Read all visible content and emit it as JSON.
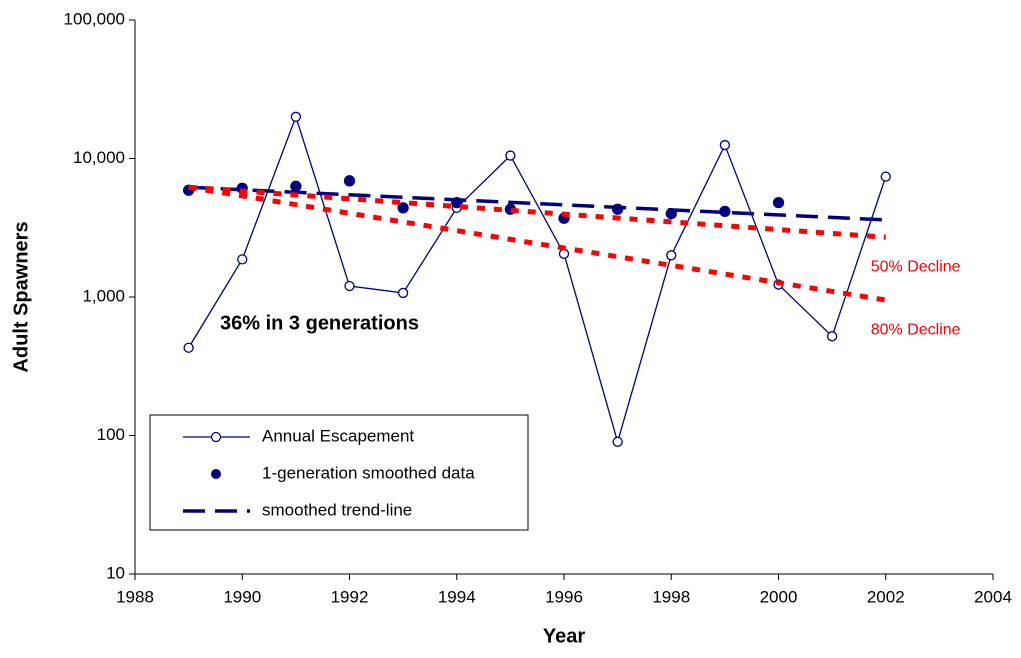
{
  "chart_data": {
    "type": "line",
    "x_label": "Year",
    "y_label": "Adult Spawners",
    "xlim": [
      1988,
      2004
    ],
    "xticks": [
      1988,
      1990,
      1992,
      1994,
      1996,
      1998,
      2000,
      2002,
      2004
    ],
    "ylim": [
      10,
      100000
    ],
    "yticks": [
      10,
      100,
      {
        "value": 1000,
        "label": "1,000"
      },
      {
        "value": 10000,
        "label": "10,000"
      },
      {
        "value": 100000,
        "label": "100,000"
      }
    ],
    "log_scale_y": true,
    "grid": false,
    "annotations": [
      "36% in 3 generations"
    ],
    "series": [
      {
        "name": "Annual Escapement",
        "color": "#000080",
        "style": "line-open-marker",
        "x": [
          1989,
          1990,
          1991,
          1992,
          1993,
          1994,
          1995,
          1996,
          1997,
          1998,
          1999,
          2000,
          2001,
          2002
        ],
        "values": [
          430,
          1870,
          20000,
          1200,
          1070,
          4400,
          10500,
          2050,
          90,
          2000,
          12500,
          1230,
          520,
          7400
        ]
      },
      {
        "name": "1-generation smoothed data",
        "color": "#000080",
        "style": "dot",
        "x": [
          1989,
          1990,
          1991,
          1992,
          1993,
          1994,
          1995,
          1996,
          1997,
          1998,
          1999,
          2000
        ],
        "values": [
          5900,
          6100,
          6300,
          6900,
          4400,
          4800,
          4300,
          3700,
          4300,
          4000,
          4150,
          4800
        ]
      },
      {
        "name": "smoothed trend-line",
        "color": "#000080",
        "style": "dashed",
        "x": [
          1989,
          2002
        ],
        "values": [
          6200,
          3600
        ]
      },
      {
        "label": "50% Decline",
        "color": "#ff0000",
        "style": "dotted",
        "x": [
          1989,
          2002
        ],
        "values": [
          6200,
          2700
        ]
      },
      {
        "label": "80% Decline",
        "color": "#ff0000",
        "style": "dotted",
        "x": [
          1989,
          2002
        ],
        "values": [
          6200,
          950
        ]
      }
    ]
  }
}
